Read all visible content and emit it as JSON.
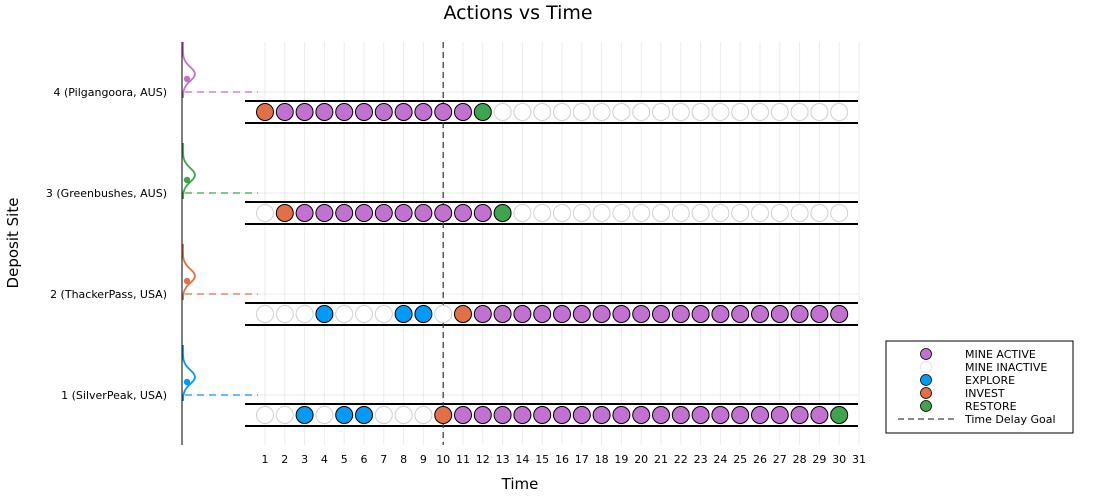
{
  "chart_data": {
    "type": "scatter",
    "title": "Actions vs Time",
    "xlabel": "Time",
    "ylabel": "Deposit Site",
    "xlim": [
      1,
      31
    ],
    "grid": true,
    "legend_position": "bottom-right, outside plot",
    "sites": [
      {
        "id": 1,
        "label": "1 (SilverPeak, USA)",
        "color": "#009AFA"
      },
      {
        "id": 2,
        "label": "2 (ThackerPass, USA)",
        "color": "#E26F46"
      },
      {
        "id": 3,
        "label": "3 (Greenbushes, AUS)",
        "color": "#3EA44E"
      },
      {
        "id": 4,
        "label": "4 (Pilgangoora, AUS)",
        "color": "#C271D2"
      }
    ],
    "time_steps": [
      1,
      2,
      3,
      4,
      5,
      6,
      7,
      8,
      9,
      10,
      11,
      12,
      13,
      14,
      15,
      16,
      17,
      18,
      19,
      20,
      21,
      22,
      23,
      24,
      25,
      26,
      27,
      28,
      29,
      30,
      31
    ],
    "actions": {
      "1": [
        "MINE INACTIVE",
        "MINE INACTIVE",
        "EXPLORE",
        "MINE INACTIVE",
        "EXPLORE",
        "EXPLORE",
        "MINE INACTIVE",
        "MINE INACTIVE",
        "MINE INACTIVE",
        "INVEST",
        "MINE ACTIVE",
        "MINE ACTIVE",
        "MINE ACTIVE",
        "MINE ACTIVE",
        "MINE ACTIVE",
        "MINE ACTIVE",
        "MINE ACTIVE",
        "MINE ACTIVE",
        "MINE ACTIVE",
        "MINE ACTIVE",
        "MINE ACTIVE",
        "MINE ACTIVE",
        "MINE ACTIVE",
        "MINE ACTIVE",
        "MINE ACTIVE",
        "MINE ACTIVE",
        "MINE ACTIVE",
        "MINE ACTIVE",
        "MINE ACTIVE",
        "RESTORE"
      ],
      "2": [
        "MINE INACTIVE",
        "MINE INACTIVE",
        "MINE INACTIVE",
        "EXPLORE",
        "MINE INACTIVE",
        "MINE INACTIVE",
        "MINE INACTIVE",
        "EXPLORE",
        "EXPLORE",
        "MINE INACTIVE",
        "INVEST",
        "MINE ACTIVE",
        "MINE ACTIVE",
        "MINE ACTIVE",
        "MINE ACTIVE",
        "MINE ACTIVE",
        "MINE ACTIVE",
        "MINE ACTIVE",
        "MINE ACTIVE",
        "MINE ACTIVE",
        "MINE ACTIVE",
        "MINE ACTIVE",
        "MINE ACTIVE",
        "MINE ACTIVE",
        "MINE ACTIVE",
        "MINE ACTIVE",
        "MINE ACTIVE",
        "MINE ACTIVE",
        "MINE ACTIVE",
        "MINE ACTIVE"
      ],
      "3": [
        "MINE INACTIVE",
        "INVEST",
        "MINE ACTIVE",
        "MINE ACTIVE",
        "MINE ACTIVE",
        "MINE ACTIVE",
        "MINE ACTIVE",
        "MINE ACTIVE",
        "MINE ACTIVE",
        "MINE ACTIVE",
        "MINE ACTIVE",
        "MINE ACTIVE",
        "RESTORE",
        "MINE INACTIVE",
        "MINE INACTIVE",
        "MINE INACTIVE",
        "MINE INACTIVE",
        "MINE INACTIVE",
        "MINE INACTIVE",
        "MINE INACTIVE",
        "MINE INACTIVE",
        "MINE INACTIVE",
        "MINE INACTIVE",
        "MINE INACTIVE",
        "MINE INACTIVE",
        "MINE INACTIVE",
        "MINE INACTIVE",
        "MINE INACTIVE",
        "MINE INACTIVE",
        "MINE INACTIVE"
      ],
      "4": [
        "INVEST",
        "MINE ACTIVE",
        "MINE ACTIVE",
        "MINE ACTIVE",
        "MINE ACTIVE",
        "MINE ACTIVE",
        "MINE ACTIVE",
        "MINE ACTIVE",
        "MINE ACTIVE",
        "MINE ACTIVE",
        "MINE ACTIVE",
        "RESTORE",
        "MINE INACTIVE",
        "MINE INACTIVE",
        "MINE INACTIVE",
        "MINE INACTIVE",
        "MINE INACTIVE",
        "MINE INACTIVE",
        "MINE INACTIVE",
        "MINE INACTIVE",
        "MINE INACTIVE",
        "MINE INACTIVE",
        "MINE INACTIVE",
        "MINE INACTIVE",
        "MINE INACTIVE",
        "MINE INACTIVE",
        "MINE INACTIVE",
        "MINE INACTIVE",
        "MINE INACTIVE",
        "MINE INACTIVE"
      ]
    },
    "time_delay_goal": 10,
    "legend": [
      {
        "label": "MINE ACTIVE",
        "kind": "marker",
        "color": "#C271D2"
      },
      {
        "label": "MINE INACTIVE",
        "kind": "marker",
        "color": "#FFFFFF"
      },
      {
        "label": "EXPLORE",
        "kind": "marker",
        "color": "#009AFA"
      },
      {
        "label": "INVEST",
        "kind": "marker",
        "color": "#E26F46"
      },
      {
        "label": "RESTORE",
        "kind": "marker",
        "color": "#3EA44E"
      },
      {
        "label": "Time Delay Goal",
        "kind": "dashed-line",
        "color": "#404040"
      }
    ],
    "action_colors": {
      "MINE ACTIVE": "#C271D2",
      "MINE INACTIVE": "#FFFFFF",
      "EXPLORE": "#009AFA",
      "INVEST": "#E26F46",
      "RESTORE": "#3EA44E"
    }
  }
}
